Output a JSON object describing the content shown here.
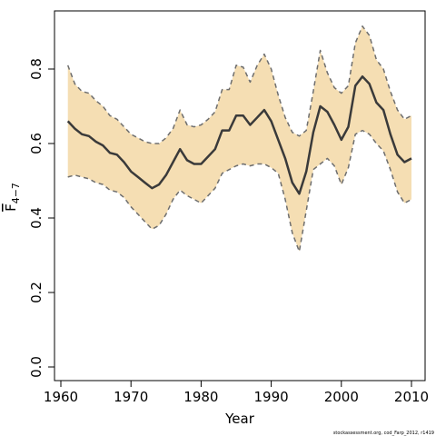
{
  "chart_data": {
    "type": "line",
    "title": "",
    "xlabel": "Year",
    "ylabel": "F̅ ",
    "ylabel_main": "F",
    "ylabel_sub": "4−7",
    "xlim": [
      1960,
      2010
    ],
    "ylim": [
      0.0,
      0.95
    ],
    "xticks": [
      "1960",
      "1970",
      "1980",
      "1990",
      "2000",
      "2010"
    ],
    "yticks": [
      "0.0",
      "0.2",
      "0.4",
      "0.6",
      "0.8"
    ],
    "grid": false,
    "legend": "none",
    "credit": "stockassessment.org, cod_Farp_2012, r1419",
    "colors": {
      "band": "#f5deb3",
      "line": "#3a3a3a",
      "bound": "#6e6e6e"
    },
    "years": [
      1961,
      1962,
      1963,
      1964,
      1965,
      1966,
      1967,
      1968,
      1969,
      1970,
      1971,
      1972,
      1973,
      1974,
      1975,
      1976,
      1977,
      1978,
      1979,
      1980,
      1981,
      1982,
      1983,
      1984,
      1985,
      1986,
      1987,
      1988,
      1989,
      1990,
      1991,
      1992,
      1993,
      1994,
      1995,
      1996,
      1997,
      1998,
      1999,
      2000,
      2001,
      2002,
      2003,
      2004,
      2005,
      2006,
      2007,
      2008,
      2009,
      2010
    ],
    "series": [
      {
        "name": "estimate",
        "values": [
          0.66,
          0.64,
          0.625,
          0.62,
          0.605,
          0.595,
          0.575,
          0.57,
          0.55,
          0.525,
          0.51,
          0.495,
          0.48,
          0.49,
          0.515,
          0.55,
          0.585,
          0.555,
          0.545,
          0.545,
          0.565,
          0.585,
          0.635,
          0.635,
          0.675,
          0.675,
          0.65,
          0.67,
          0.69,
          0.66,
          0.61,
          0.56,
          0.495,
          0.465,
          0.525,
          0.63,
          0.7,
          0.685,
          0.65,
          0.61,
          0.645,
          0.755,
          0.78,
          0.76,
          0.71,
          0.69,
          0.625,
          0.57,
          0.55,
          0.56
        ]
      },
      {
        "name": "upper",
        "values": [
          0.81,
          0.76,
          0.74,
          0.735,
          0.715,
          0.7,
          0.675,
          0.665,
          0.645,
          0.625,
          0.615,
          0.605,
          0.6,
          0.6,
          0.615,
          0.64,
          0.69,
          0.65,
          0.645,
          0.65,
          0.665,
          0.685,
          0.745,
          0.745,
          0.81,
          0.805,
          0.765,
          0.81,
          0.84,
          0.8,
          0.73,
          0.67,
          0.63,
          0.62,
          0.635,
          0.74,
          0.85,
          0.79,
          0.75,
          0.735,
          0.755,
          0.87,
          0.915,
          0.89,
          0.825,
          0.8,
          0.74,
          0.69,
          0.665,
          0.675
        ]
      },
      {
        "name": "lower",
        "values": [
          0.51,
          0.515,
          0.51,
          0.505,
          0.495,
          0.49,
          0.475,
          0.47,
          0.455,
          0.43,
          0.41,
          0.39,
          0.37,
          0.38,
          0.41,
          0.45,
          0.475,
          0.46,
          0.45,
          0.44,
          0.46,
          0.48,
          0.52,
          0.53,
          0.54,
          0.545,
          0.54,
          0.545,
          0.545,
          0.535,
          0.52,
          0.45,
          0.36,
          0.31,
          0.42,
          0.53,
          0.545,
          0.56,
          0.54,
          0.49,
          0.535,
          0.625,
          0.635,
          0.625,
          0.6,
          0.58,
          0.53,
          0.47,
          0.44,
          0.45
        ]
      }
    ]
  }
}
